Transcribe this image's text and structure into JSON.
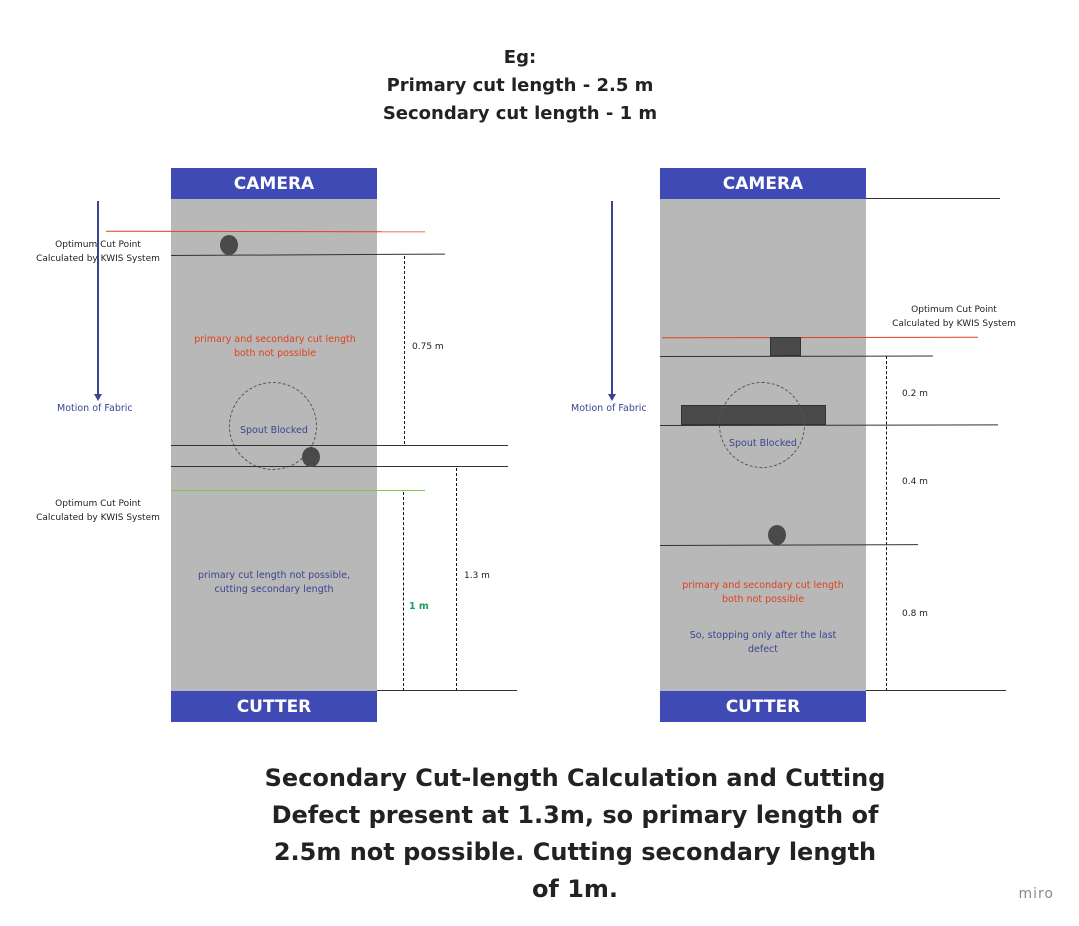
{
  "header": {
    "line1": "Eg:",
    "line2": "Primary cut length - 2.5 m",
    "line3": "Secondary cut length - 1 m"
  },
  "left_panel": {
    "camera_label": "CAMERA",
    "cutter_label": "CUTTER",
    "motion_label": "Motion of Fabric",
    "cut_point_label_1a": "Optimum Cut Point",
    "cut_point_label_1b": "Calculated by KWIS System",
    "cut_point_label_2a": "Optimum Cut Point",
    "cut_point_label_2b": "Calculated by KWIS System",
    "red_note_line1": "primary and secondary cut length",
    "red_note_line2": "both not possible",
    "spout_label": "Spout Blocked",
    "blue_note_line1": "primary cut length not possible,",
    "blue_note_line2": "cutting secondary length",
    "measure_075": "0.75 m",
    "measure_13": "1.3 m",
    "measure_1": "1 m"
  },
  "right_panel": {
    "camera_label": "CAMERA",
    "cutter_label": "CUTTER",
    "motion_label": "Motion of Fabric",
    "cut_point_label_a": "Optimum Cut Point",
    "cut_point_label_b": "Calculated by KWIS System",
    "spout_label": "Spout Blocked",
    "red_note_line1": "primary and secondary cut length",
    "red_note_line2": "both not possible",
    "blue_note_line1": "So, stopping only after the last",
    "blue_note_line2": "defect",
    "measure_02": "0.2  m",
    "measure_04": "0.4 m",
    "measure_08": "0.8 m"
  },
  "footer": {
    "line1": "Secondary Cut-length Calculation and Cutting",
    "line2": "Defect present at 1.3m, so primary length of",
    "line3": "2.5m not possible. Cutting secondary length",
    "line4": "of 1m."
  },
  "watermark": "miro",
  "colors": {
    "bar": "#3f4ab5",
    "belt": "#b8b8b8",
    "red": "#e0411e",
    "green": "#7ec850",
    "blue_text": "#3a4590",
    "green_text": "#1f9a5a"
  }
}
